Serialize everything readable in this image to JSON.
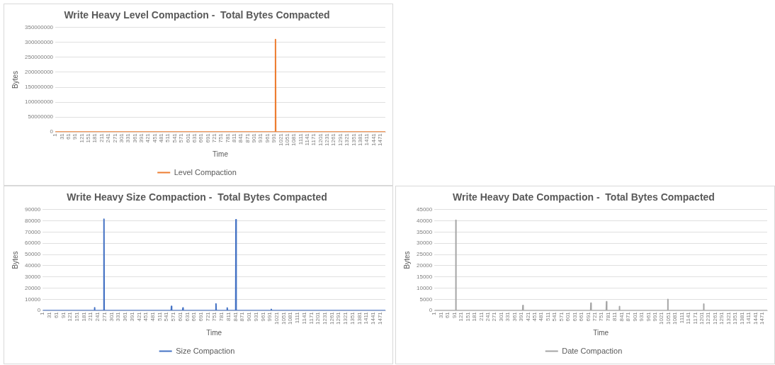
{
  "chart_data": [
    {
      "type": "line",
      "title": "Write Heavy Level Compaction -  Total Bytes Compacted",
      "xlabel": "Time",
      "ylabel": "Bytes",
      "xlim": [
        1,
        1494
      ],
      "xticks": [
        1,
        31,
        61,
        91,
        121,
        151,
        181,
        211,
        241,
        271,
        301,
        331,
        361,
        391,
        421,
        451,
        481,
        511,
        541,
        571,
        601,
        631,
        661,
        691,
        721,
        751,
        781,
        811,
        841,
        871,
        901,
        931,
        961,
        991,
        1021,
        1051,
        1081,
        1111,
        1141,
        1171,
        1201,
        1231,
        1261,
        1291,
        1321,
        1351,
        1381,
        1411,
        1441,
        1471
      ],
      "ylim": [
        0,
        350000000
      ],
      "yticks": [
        0,
        50000000,
        100000000,
        150000000,
        200000000,
        250000000,
        300000000,
        350000000
      ],
      "grid": "y",
      "legend": "bottom",
      "series": [
        {
          "name": "Level Compaction",
          "color": "#ed7d31",
          "x": [
            1,
            996,
            997,
            998,
            1494
          ],
          "values": [
            0,
            0,
            310000000,
            0,
            0
          ]
        }
      ]
    },
    {
      "type": "line",
      "title": "Write Heavy Size Compaction -  Total Bytes Compacted",
      "xlabel": "Time",
      "ylabel": "Bytes",
      "xlim": [
        1,
        1494
      ],
      "xticks": [
        1,
        31,
        61,
        91,
        121,
        151,
        181,
        211,
        241,
        271,
        301,
        331,
        361,
        391,
        421,
        451,
        481,
        511,
        541,
        571,
        601,
        631,
        661,
        691,
        721,
        751,
        781,
        811,
        841,
        871,
        901,
        931,
        961,
        991,
        1021,
        1051,
        1081,
        1111,
        1141,
        1171,
        1201,
        1231,
        1261,
        1291,
        1321,
        1351,
        1381,
        1411,
        1441,
        1471
      ],
      "ylim": [
        0,
        90000
      ],
      "yticks": [
        0,
        10000,
        20000,
        30000,
        40000,
        50000,
        60000,
        70000,
        80000,
        90000
      ],
      "grid": "y",
      "legend": "bottom",
      "series": [
        {
          "name": "Size Compaction",
          "color": "#4472c4",
          "x": [
            1,
            226,
            227,
            228,
            267,
            268,
            269,
            561,
            562,
            563,
            611,
            612,
            613,
            755,
            756,
            757,
            804,
            805,
            806,
            842,
            843,
            844,
            996,
            997,
            998,
            1494
          ],
          "values": [
            0,
            0,
            2500,
            0,
            0,
            81500,
            0,
            0,
            3800,
            0,
            0,
            2300,
            0,
            0,
            6000,
            0,
            0,
            2300,
            0,
            0,
            81000,
            0,
            0,
            1000,
            0,
            0
          ]
        }
      ]
    },
    {
      "type": "line",
      "title": "Write Heavy Date Compaction -  Total Bytes Compacted",
      "xlabel": "Time",
      "ylabel": "Bytes",
      "xlim": [
        1,
        1494
      ],
      "xticks": [
        1,
        31,
        61,
        91,
        121,
        151,
        181,
        211,
        241,
        271,
        301,
        331,
        361,
        391,
        421,
        451,
        481,
        511,
        541,
        571,
        601,
        631,
        661,
        691,
        721,
        751,
        781,
        811,
        841,
        871,
        901,
        931,
        961,
        991,
        1021,
        1051,
        1081,
        1111,
        1141,
        1171,
        1201,
        1231,
        1261,
        1291,
        1321,
        1351,
        1381,
        1411,
        1441,
        1471
      ],
      "ylim": [
        0,
        45000
      ],
      "yticks": [
        0,
        5000,
        10000,
        15000,
        20000,
        25000,
        30000,
        35000,
        40000,
        45000
      ],
      "grid": "y",
      "legend": "bottom",
      "series": [
        {
          "name": "Date Compaction",
          "color": "#a5a5a5",
          "x": [
            1,
            96,
            97,
            98,
            397,
            398,
            399,
            702,
            703,
            704,
            772,
            773,
            774,
            830,
            831,
            832,
            1047,
            1048,
            1049,
            1208,
            1209,
            1210,
            1494
          ],
          "values": [
            0,
            0,
            40300,
            0,
            0,
            2300,
            0,
            0,
            3300,
            0,
            0,
            3900,
            0,
            0,
            1800,
            0,
            0,
            5000,
            0,
            0,
            2900,
            0,
            0
          ]
        }
      ]
    }
  ]
}
